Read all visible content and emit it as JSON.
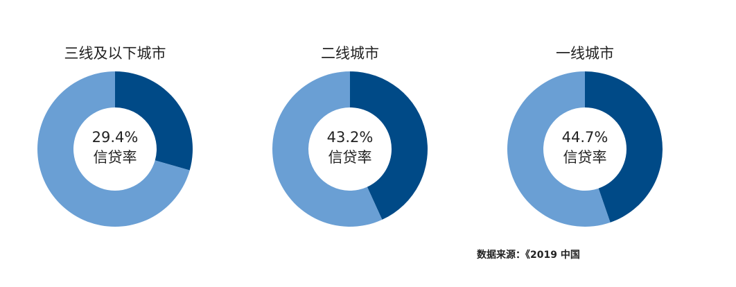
{
  "chart_data": [
    {
      "type": "donut",
      "title": "三线及以下城市",
      "values": [
        29.4,
        70.6
      ],
      "value_labels": [
        "29.4%",
        null
      ],
      "center_label": "信贷率",
      "colors": [
        "#004a87",
        "#6a9fd4"
      ]
    },
    {
      "type": "donut",
      "title": "二线城市",
      "values": [
        43.2,
        56.8
      ],
      "value_labels": [
        "43.2%",
        null
      ],
      "center_label": "信贷率",
      "colors": [
        "#004a87",
        "#6a9fd4"
      ]
    },
    {
      "type": "donut",
      "title": "一线城市",
      "values": [
        44.7,
        55.3
      ],
      "value_labels": [
        "44.7%",
        null
      ],
      "center_label": "信贷率",
      "colors": [
        "#004a87",
        "#6a9fd4"
      ]
    }
  ],
  "source": "数据来源：《2019 中国"
}
